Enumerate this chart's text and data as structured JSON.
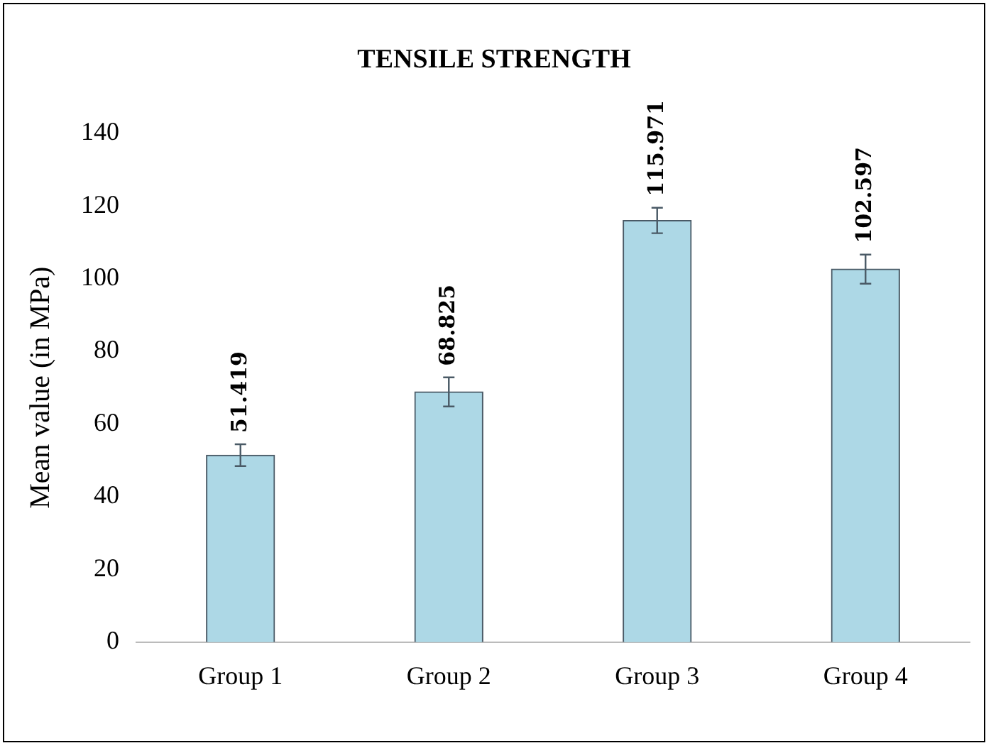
{
  "chart_data": {
    "type": "bar",
    "title": "TENSILE STRENGTH",
    "ylabel": "Mean value (in MPa)",
    "categories": [
      "Group 1",
      "Group 2",
      "Group 3",
      "Group 4"
    ],
    "values": [
      51.419,
      68.825,
      115.971,
      102.597
    ],
    "errors": [
      3,
      4,
      3.5,
      4
    ],
    "color": "#add8e6",
    "ylim": [
      0,
      140
    ],
    "yticks": [
      0,
      20,
      40,
      60,
      80,
      100,
      120,
      140
    ],
    "grid": false,
    "legend": false,
    "data_labels": true
  }
}
